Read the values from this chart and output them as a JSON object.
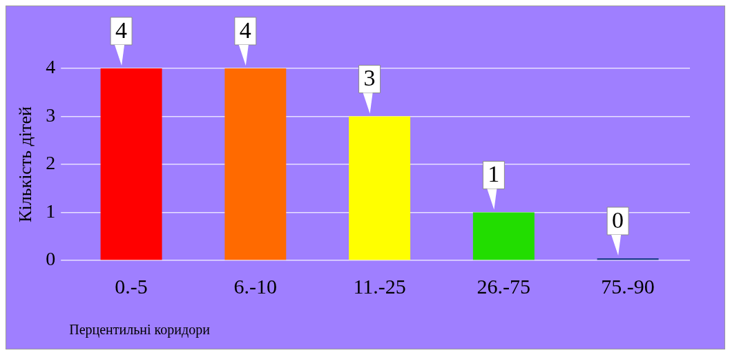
{
  "chart_data": {
    "type": "bar",
    "categories": [
      "0.-5",
      "6.-10",
      "11.-25",
      "26.-75",
      "75.-90"
    ],
    "values": [
      4,
      4,
      3,
      1,
      0
    ],
    "colors": [
      "#ff0000",
      "#ff6a00",
      "#ffff00",
      "#22dd00",
      "#1a3a8a"
    ],
    "xlabel": "Перцентильні коридори",
    "ylabel": "Кількість дітей",
    "ylim": [
      0,
      4
    ],
    "yticks": [
      0,
      1,
      2,
      3,
      4
    ],
    "grid": "y",
    "data_labels": true
  }
}
